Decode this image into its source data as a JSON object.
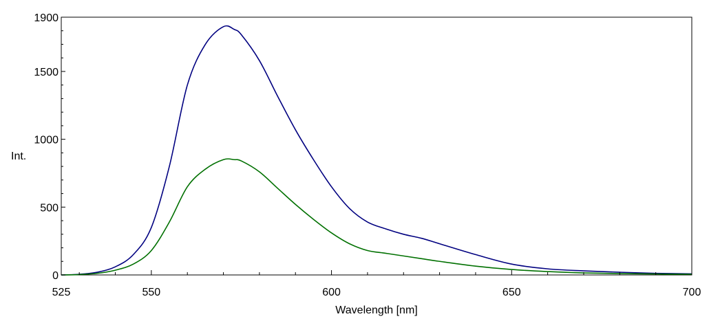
{
  "chart_data": {
    "type": "line",
    "title": "",
    "xlabel": "Wavelength [nm]",
    "ylabel": "Int.",
    "xlim": [
      525,
      700
    ],
    "ylim": [
      0,
      1900
    ],
    "xticks": [
      525,
      550,
      600,
      650,
      700
    ],
    "yticks": [
      0,
      500,
      1000,
      1500,
      1900
    ],
    "xtick_labels": [
      "525",
      "550",
      "600",
      "650",
      "700"
    ],
    "ytick_labels": [
      "0",
      "500",
      "1000",
      "1500",
      "1900"
    ],
    "grid": false,
    "series": [
      {
        "name": "blue",
        "color": "#000080",
        "x": [
          525,
          530,
          535,
          540,
          545,
          550,
          555,
          560,
          565,
          570,
          573,
          575,
          580,
          585,
          590,
          595,
          600,
          605,
          610,
          615,
          620,
          625,
          630,
          640,
          650,
          660,
          670,
          680,
          690,
          700
        ],
        "y": [
          0,
          5,
          20,
          60,
          150,
          350,
          800,
          1400,
          1700,
          1830,
          1810,
          1770,
          1580,
          1320,
          1070,
          850,
          650,
          490,
          390,
          340,
          300,
          270,
          230,
          150,
          80,
          45,
          30,
          20,
          12,
          8
        ]
      },
      {
        "name": "green",
        "color": "#007000",
        "x": [
          525,
          530,
          535,
          540,
          545,
          550,
          555,
          560,
          565,
          570,
          573,
          575,
          580,
          585,
          590,
          595,
          600,
          605,
          610,
          615,
          620,
          625,
          630,
          640,
          650,
          660,
          670,
          680,
          690,
          700
        ],
        "y": [
          0,
          3,
          12,
          35,
          80,
          180,
          390,
          650,
          780,
          850,
          850,
          840,
          760,
          640,
          520,
          410,
          310,
          230,
          180,
          160,
          140,
          120,
          100,
          65,
          40,
          25,
          15,
          10,
          7,
          5
        ]
      }
    ]
  }
}
